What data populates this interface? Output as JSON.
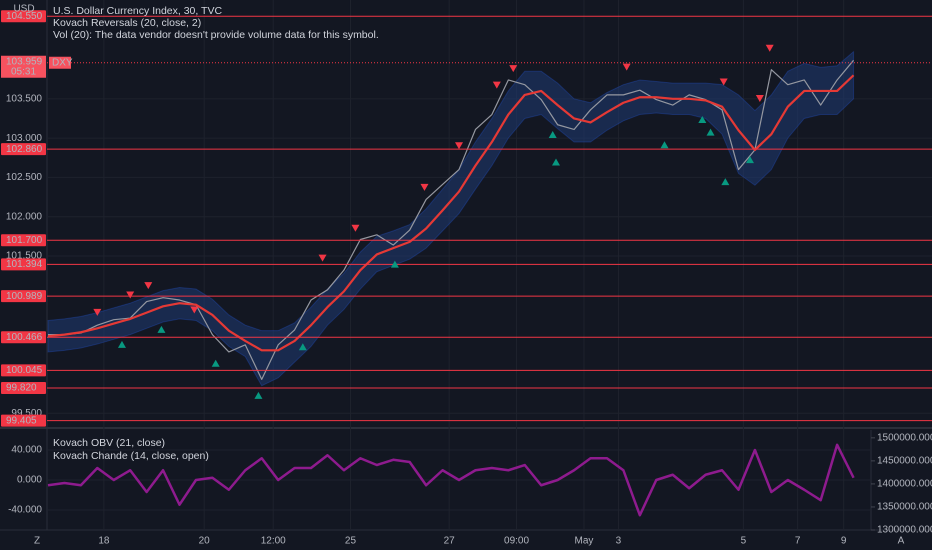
{
  "ui": {
    "currency": "USD",
    "corner_left": "Z",
    "corner_right": "A"
  },
  "chart_data": [
    {
      "type": "line",
      "title": "U.S. Dollar Currency Index, 30, TVC",
      "indicators": [
        "Kovach Reversals (20, close, 2)",
        "Vol (20): The data vendor doesn't provide volume data for this symbol."
      ],
      "x": [
        0,
        1,
        2,
        3,
        4,
        5,
        6,
        7,
        8,
        9,
        10,
        11,
        12,
        13,
        14,
        15,
        16,
        17,
        18,
        19,
        20,
        21,
        22,
        23,
        24,
        25,
        26,
        27,
        28,
        29,
        30,
        31,
        32,
        33,
        34,
        35,
        36,
        37,
        38,
        39,
        40,
        41,
        42,
        43,
        44,
        45,
        46,
        47,
        48,
        49
      ],
      "xlim": [
        0,
        50
      ],
      "xticks": [
        {
          "value": 3.4,
          "label": "18"
        },
        {
          "value": 9.5,
          "label": "20"
        },
        {
          "value": 13.7,
          "label": "12:00"
        },
        {
          "value": 18.4,
          "label": "25"
        },
        {
          "value": 24.4,
          "label": "27"
        },
        {
          "value": 28.5,
          "label": "09:00"
        },
        {
          "value": 32.6,
          "label": "May"
        },
        {
          "value": 34.7,
          "label": "3"
        },
        {
          "value": 42.3,
          "label": "5"
        },
        {
          "value": 45.6,
          "label": "7"
        },
        {
          "value": 48.4,
          "label": "9"
        }
      ],
      "ylim": [
        99.35,
        104.63
      ],
      "yticks": [
        {
          "value": 99.5,
          "label": "99.500"
        },
        {
          "value": 101.5,
          "label": "101.500"
        },
        {
          "value": 102,
          "label": "102.000"
        },
        {
          "value": 102.5,
          "label": "102.500"
        },
        {
          "value": 103,
          "label": "103.000"
        },
        {
          "value": 103.5,
          "label": "103.500"
        }
      ],
      "grid": true,
      "series": [
        {
          "color": "#9598a1",
          "values": [
            100.5,
            100.5,
            100.52,
            100.62,
            100.69,
            100.71,
            100.92,
            100.97,
            100.94,
            100.88,
            100.5,
            100.28,
            100.37,
            99.93,
            100.37,
            100.56,
            100.94,
            101.07,
            101.32,
            101.71,
            101.77,
            101.64,
            101.83,
            102.22,
            102.41,
            102.6,
            103.11,
            103.3,
            103.74,
            103.68,
            103.49,
            103.17,
            103.11,
            103.36,
            103.55,
            103.55,
            103.61,
            103.49,
            103.42,
            103.55,
            103.49,
            103.36,
            102.6,
            102.85,
            103.87,
            103.68,
            103.74,
            103.42,
            103.74,
            103.99
          ]
        },
        {
          "color": "#e53935",
          "values": [
            100.48,
            100.5,
            100.53,
            100.58,
            100.64,
            100.7,
            100.78,
            100.86,
            100.9,
            100.88,
            100.75,
            100.55,
            100.42,
            100.3,
            100.3,
            100.42,
            100.62,
            100.85,
            101.05,
            101.32,
            101.52,
            101.6,
            101.68,
            101.85,
            102.08,
            102.32,
            102.65,
            102.95,
            103.3,
            103.55,
            103.6,
            103.42,
            103.25,
            103.2,
            103.33,
            103.45,
            103.52,
            103.52,
            103.5,
            103.5,
            103.48,
            103.4,
            103.1,
            102.85,
            103.05,
            103.4,
            103.6,
            103.6,
            103.6,
            103.8
          ]
        }
      ],
      "band": {
        "color": "#1f3b73",
        "upper": [
          100.68,
          100.7,
          100.73,
          100.78,
          100.84,
          100.9,
          100.98,
          101.06,
          101.1,
          101.08,
          100.95,
          100.75,
          100.62,
          100.55,
          100.55,
          100.65,
          100.85,
          101.08,
          101.28,
          101.55,
          101.75,
          101.82,
          101.9,
          102.1,
          102.35,
          102.6,
          102.95,
          103.25,
          103.6,
          103.85,
          103.85,
          103.7,
          103.5,
          103.45,
          103.58,
          103.68,
          103.74,
          103.72,
          103.7,
          103.7,
          103.7,
          103.68,
          103.55,
          103.35,
          103.55,
          103.85,
          103.95,
          103.9,
          103.92,
          104.1
        ],
        "lower": [
          100.28,
          100.3,
          100.33,
          100.38,
          100.44,
          100.5,
          100.58,
          100.66,
          100.7,
          100.68,
          100.55,
          100.35,
          100.22,
          99.85,
          99.95,
          100.15,
          100.35,
          100.62,
          100.82,
          101.08,
          101.3,
          101.38,
          101.46,
          101.6,
          101.82,
          102.04,
          102.35,
          102.65,
          103.0,
          103.25,
          103.3,
          103.12,
          102.95,
          102.95,
          103.1,
          103.22,
          103.3,
          103.32,
          103.3,
          103.3,
          103.25,
          103.05,
          102.55,
          102.4,
          102.6,
          103.0,
          103.25,
          103.3,
          103.3,
          103.5
        ]
      },
      "markers": [
        {
          "shape": "down",
          "color": "#f23645",
          "x": [
            3.0,
            5.0,
            6.1,
            8.9,
            16.7,
            18.7,
            22.9,
            25.0,
            27.3,
            28.3,
            35.2,
            41.1,
            43.3,
            43.9
          ],
          "values": [
            100.79,
            101.01,
            101.13,
            100.82,
            101.48,
            101.86,
            102.38,
            102.91,
            103.68,
            103.89,
            103.91,
            103.72,
            103.51,
            104.15
          ]
        },
        {
          "shape": "up",
          "color": "#089981",
          "x": [
            4.5,
            6.9,
            10.2,
            12.8,
            15.5,
            21.1,
            30.7,
            30.9,
            37.5,
            39.8,
            40.3,
            41.2,
            42.7
          ],
          "values": [
            100.37,
            100.56,
            100.13,
            99.72,
            100.34,
            101.39,
            103.04,
            102.69,
            102.91,
            103.23,
            103.07,
            102.44,
            102.72
          ]
        }
      ],
      "levels": [
        {
          "value": 104.55,
          "label": "104.550"
        },
        {
          "value": 102.86,
          "label": "102.860"
        },
        {
          "value": 101.7,
          "label": "101.700"
        },
        {
          "value": 101.394,
          "label": "101.394"
        },
        {
          "value": 100.989,
          "label": "100.989"
        },
        {
          "value": 100.466,
          "label": "100.466"
        },
        {
          "value": 100.045,
          "label": "100.045"
        },
        {
          "value": 99.82,
          "label": "99.820"
        },
        {
          "value": 99.405,
          "label": "99.405"
        }
      ],
      "levels_color": "#f23645",
      "current": {
        "value": 103.959,
        "label": "103.959",
        "countdown": "05:31",
        "symbol": "DXY"
      }
    },
    {
      "type": "line",
      "indicators": [
        "Kovach OBV (21, close)",
        "Kovach Chande (14, close, open)"
      ],
      "ylim": [
        -66.7,
        66.7
      ],
      "yticks": [
        {
          "value": 40,
          "label": "40.000"
        },
        {
          "value": 0,
          "label": "0.000"
        },
        {
          "value": -40,
          "label": "-40.000"
        }
      ],
      "y2lim": [
        1300000,
        1517000
      ],
      "y2ticks": [
        {
          "value": 1500000,
          "label": "1500000.000"
        },
        {
          "value": 1450000,
          "label": "1450000.000"
        },
        {
          "value": 1400000,
          "label": "1400000.000"
        },
        {
          "value": 1350000,
          "label": "1350000.000"
        },
        {
          "value": 1300000,
          "label": "1300000.000"
        }
      ],
      "series": [
        {
          "color": "#8e1b8e",
          "values": [
            -7,
            -4,
            -7,
            16,
            0,
            13,
            -16,
            13,
            -33,
            0,
            3,
            -13,
            13,
            29,
            0,
            16,
            16,
            33,
            13,
            29,
            20,
            27,
            24,
            -7,
            13,
            0,
            13,
            16,
            13,
            20,
            -7,
            0,
            13,
            29,
            29,
            13,
            -47,
            0,
            7,
            -11,
            7,
            13,
            -13,
            40,
            -16,
            0,
            -13,
            -27,
            47,
            3
          ]
        }
      ]
    }
  ]
}
